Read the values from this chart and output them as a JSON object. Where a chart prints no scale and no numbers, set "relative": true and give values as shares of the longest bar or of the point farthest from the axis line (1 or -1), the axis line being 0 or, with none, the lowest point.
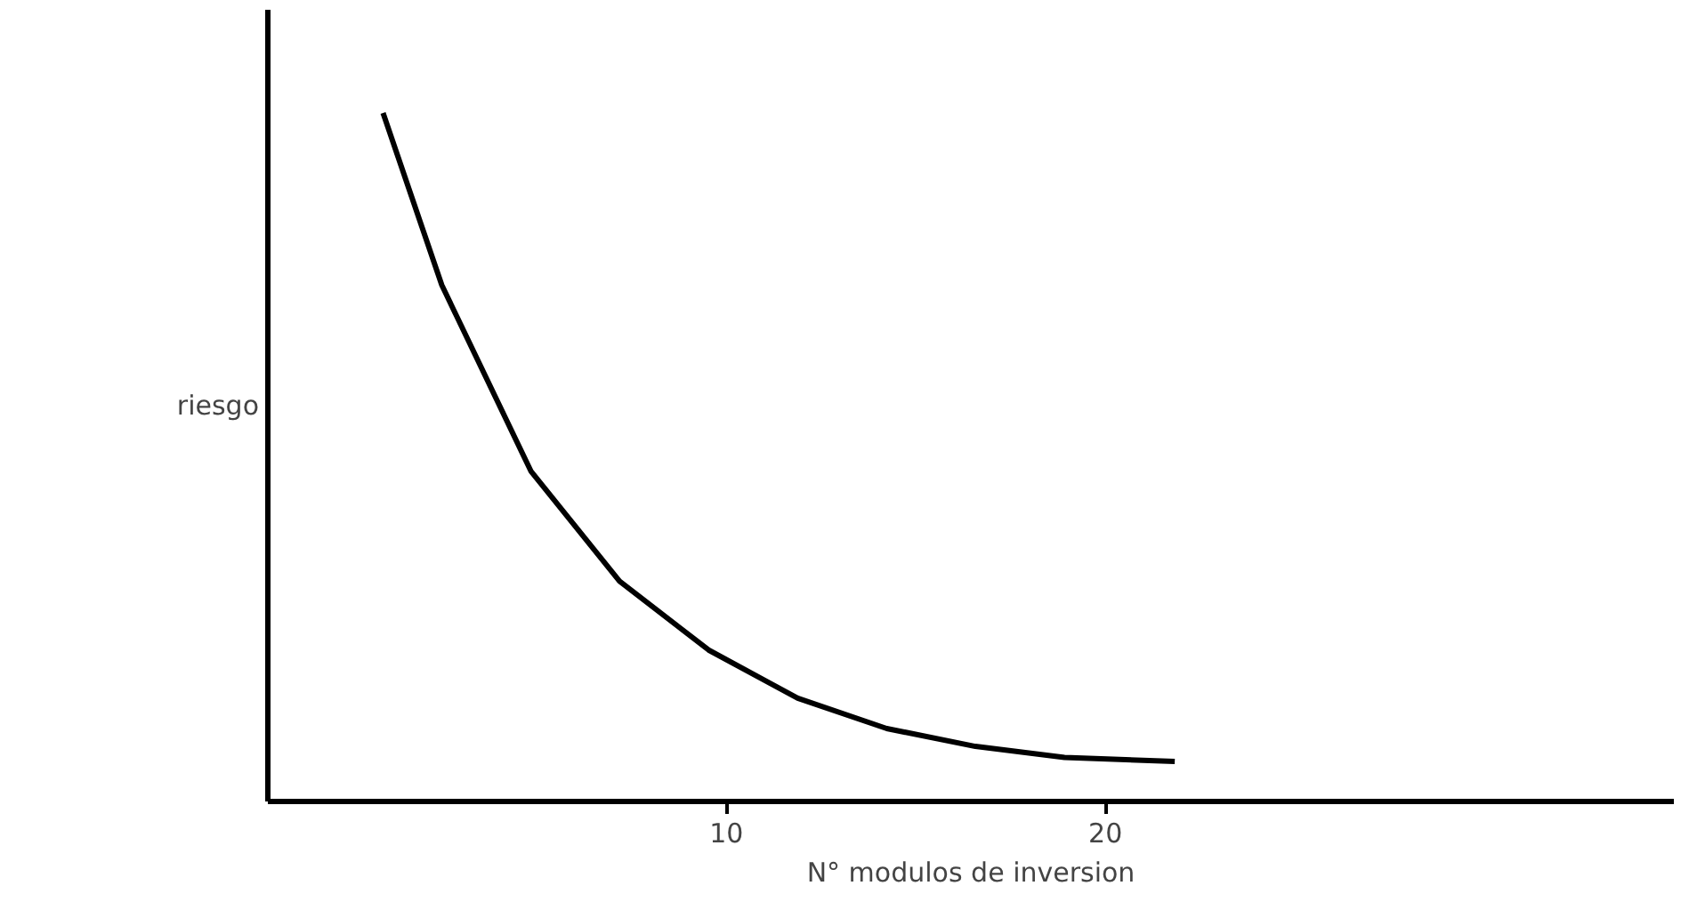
{
  "chart_data": {
    "type": "line",
    "relative": true,
    "xlabel": "N° modulos de inversion",
    "ylabel": "riesgo",
    "x": [
      0.94,
      2.49,
      4.84,
      7.18,
      9.53,
      11.88,
      14.23,
      16.57,
      18.92,
      21.83
    ],
    "series": [
      {
        "color": "#000000",
        "values": [
          1,
          0.75,
          0.48,
          0.32,
          0.22,
          0.15,
          0.106,
          0.08,
          0.064,
          0.058
        ]
      }
    ],
    "xlim": [
      -2.1,
      35
    ],
    "xticks": [
      10,
      20
    ],
    "grid": false,
    "marker": "none",
    "line_style": "solid"
  }
}
